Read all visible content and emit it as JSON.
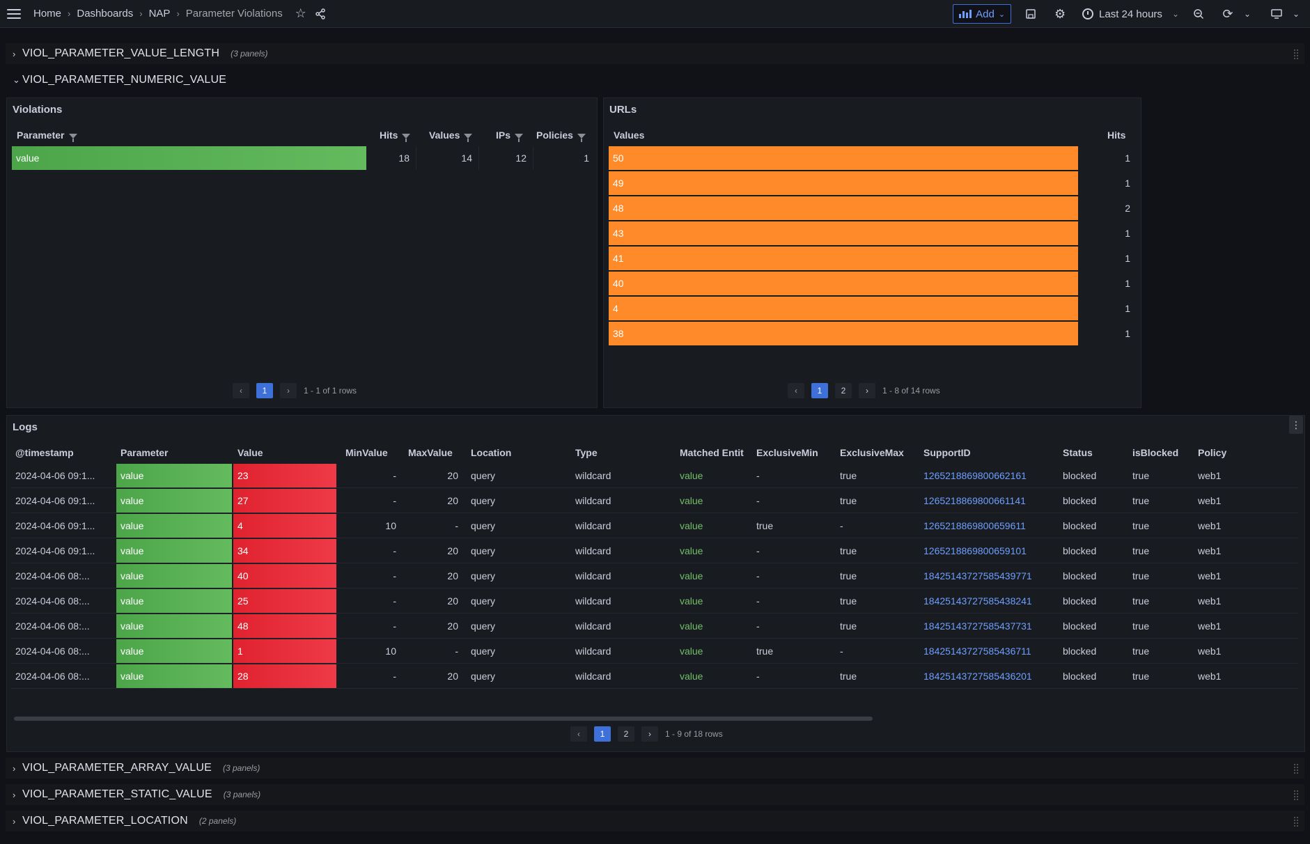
{
  "nav": {
    "breadcrumbs": [
      "Home",
      "Dashboards",
      "NAP",
      "Parameter Violations"
    ],
    "add_label": "Add",
    "time_range": "Last 24 hours",
    "accent": "#3d71d9"
  },
  "rows": {
    "r1": {
      "title": "VIOL_PARAMETER_VALUE_LENGTH",
      "count": "(3 panels)"
    },
    "r2": {
      "title": "VIOL_PARAMETER_NUMERIC_VALUE"
    },
    "r3": {
      "title": "VIOL_PARAMETER_ARRAY_VALUE",
      "count": "(3 panels)"
    },
    "r4": {
      "title": "VIOL_PARAMETER_STATIC_VALUE",
      "count": "(3 panels)"
    },
    "r5": {
      "title": "VIOL_PARAMETER_LOCATION",
      "count": "(2 panels)"
    }
  },
  "violations": {
    "title": "Violations",
    "headers": {
      "parameter": "Parameter",
      "hits": "Hits",
      "values": "Values",
      "ips": "IPs",
      "policies": "Policies"
    },
    "row": {
      "parameter": "value",
      "hits": "18",
      "values": "14",
      "ips": "12",
      "policies": "1"
    },
    "page": "1",
    "summary": "1 - 1 of 1 rows"
  },
  "urls": {
    "title": "URLs",
    "headers": {
      "values": "Values",
      "hits": "Hits"
    },
    "rows": [
      {
        "value": "50",
        "hits": "1"
      },
      {
        "value": "49",
        "hits": "1"
      },
      {
        "value": "48",
        "hits": "2"
      },
      {
        "value": "43",
        "hits": "1"
      },
      {
        "value": "41",
        "hits": "1"
      },
      {
        "value": "40",
        "hits": "1"
      },
      {
        "value": "4",
        "hits": "1"
      },
      {
        "value": "38",
        "hits": "1"
      }
    ],
    "pages": [
      "1",
      "2"
    ],
    "summary": "1 - 8 of 14 rows"
  },
  "logs": {
    "title": "Logs",
    "headers": {
      "timestamp": "@timestamp",
      "parameter": "Parameter",
      "value": "Value",
      "min": "MinValue",
      "max": "MaxValue",
      "location": "Location",
      "type": "Type",
      "matched": "Matched Entit",
      "exmin": "ExclusiveMin",
      "exmax": "ExclusiveMax",
      "support": "SupportID",
      "status": "Status",
      "blocked": "isBlocked",
      "policy": "Policy"
    },
    "rows": [
      {
        "timestamp": "2024-04-06 09:1...",
        "parameter": "value",
        "value": "23",
        "min": "-",
        "max": "20",
        "location": "query",
        "type": "wildcard",
        "matched": "value",
        "exmin": "-",
        "exmax": "true",
        "support": "1265218869800662161",
        "status": "blocked",
        "blocked": "true",
        "policy": "web1"
      },
      {
        "timestamp": "2024-04-06 09:1...",
        "parameter": "value",
        "value": "27",
        "min": "-",
        "max": "20",
        "location": "query",
        "type": "wildcard",
        "matched": "value",
        "exmin": "-",
        "exmax": "true",
        "support": "1265218869800661141",
        "status": "blocked",
        "blocked": "true",
        "policy": "web1"
      },
      {
        "timestamp": "2024-04-06 09:1...",
        "parameter": "value",
        "value": "4",
        "min": "10",
        "max": "-",
        "location": "query",
        "type": "wildcard",
        "matched": "value",
        "exmin": "true",
        "exmax": "-",
        "support": "1265218869800659611",
        "status": "blocked",
        "blocked": "true",
        "policy": "web1"
      },
      {
        "timestamp": "2024-04-06 09:1...",
        "parameter": "value",
        "value": "34",
        "min": "-",
        "max": "20",
        "location": "query",
        "type": "wildcard",
        "matched": "value",
        "exmin": "-",
        "exmax": "true",
        "support": "1265218869800659101",
        "status": "blocked",
        "blocked": "true",
        "policy": "web1"
      },
      {
        "timestamp": "2024-04-06 08:...",
        "parameter": "value",
        "value": "40",
        "min": "-",
        "max": "20",
        "location": "query",
        "type": "wildcard",
        "matched": "value",
        "exmin": "-",
        "exmax": "true",
        "support": "18425143727585439771",
        "status": "blocked",
        "blocked": "true",
        "policy": "web1"
      },
      {
        "timestamp": "2024-04-06 08:...",
        "parameter": "value",
        "value": "25",
        "min": "-",
        "max": "20",
        "location": "query",
        "type": "wildcard",
        "matched": "value",
        "exmin": "-",
        "exmax": "true",
        "support": "18425143727585438241",
        "status": "blocked",
        "blocked": "true",
        "policy": "web1"
      },
      {
        "timestamp": "2024-04-06 08:...",
        "parameter": "value",
        "value": "48",
        "min": "-",
        "max": "20",
        "location": "query",
        "type": "wildcard",
        "matched": "value",
        "exmin": "-",
        "exmax": "true",
        "support": "18425143727585437731",
        "status": "blocked",
        "blocked": "true",
        "policy": "web1"
      },
      {
        "timestamp": "2024-04-06 08:...",
        "parameter": "value",
        "value": "1",
        "min": "10",
        "max": "-",
        "location": "query",
        "type": "wildcard",
        "matched": "value",
        "exmin": "true",
        "exmax": "-",
        "support": "18425143727585436711",
        "status": "blocked",
        "blocked": "true",
        "policy": "web1"
      },
      {
        "timestamp": "2024-04-06 08:...",
        "parameter": "value",
        "value": "28",
        "min": "-",
        "max": "20",
        "location": "query",
        "type": "wildcard",
        "matched": "value",
        "exmin": "-",
        "exmax": "true",
        "support": "18425143727585436201",
        "status": "blocked",
        "blocked": "true",
        "policy": "web1"
      }
    ],
    "pages": [
      "1",
      "2"
    ],
    "summary": "1 - 9 of 18 rows"
  }
}
